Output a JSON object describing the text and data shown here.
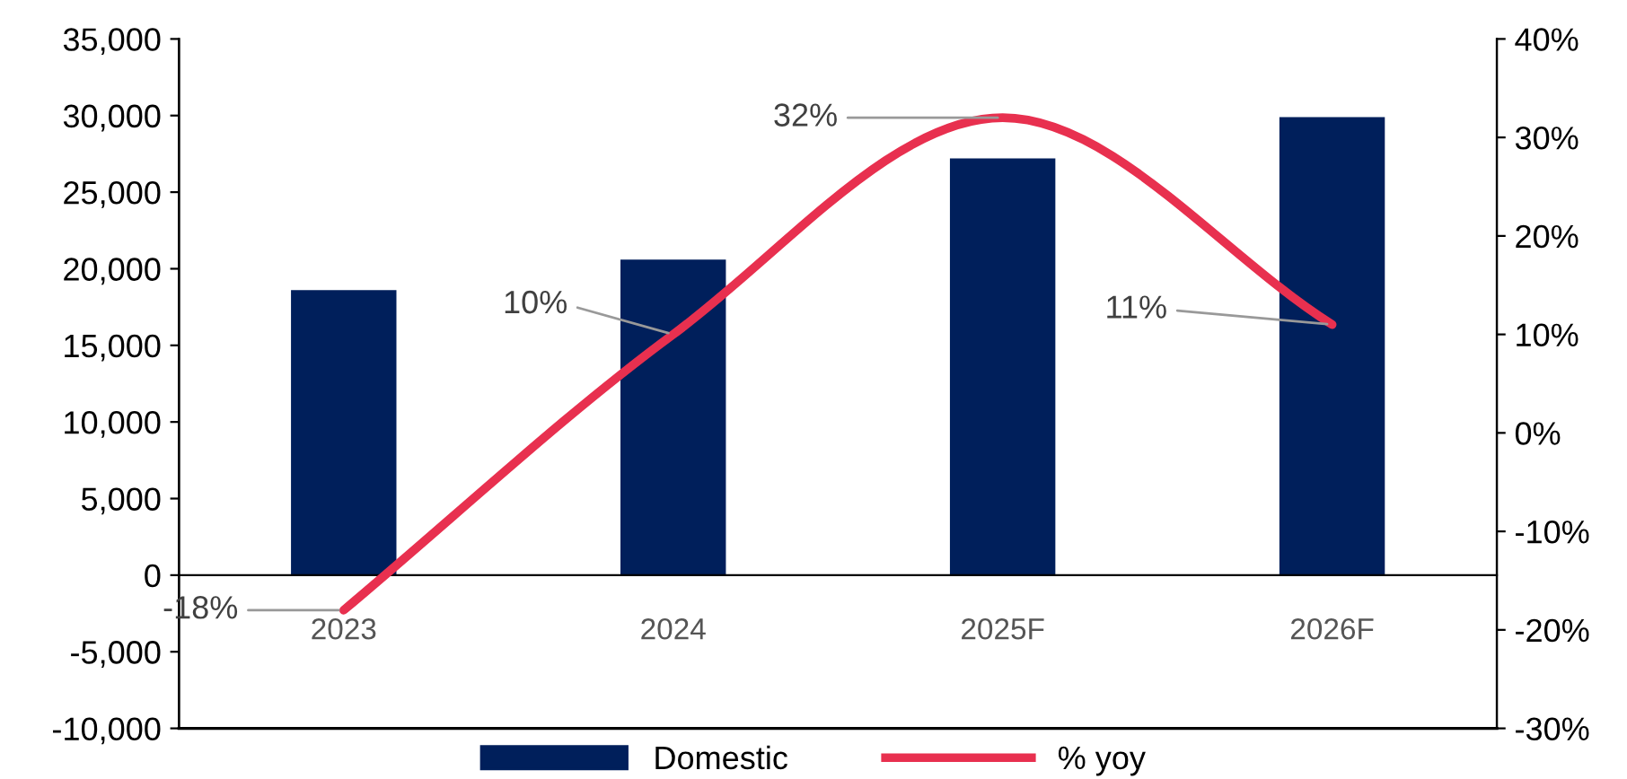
{
  "chart_data": {
    "type": "bar",
    "categories": [
      "2023",
      "2024",
      "2025F",
      "2026F"
    ],
    "series": [
      {
        "name": "Domestic",
        "color": "#001f5b",
        "values": [
          18600,
          20600,
          27200,
          29900
        ]
      },
      {
        "name": "% yoy",
        "type": "line",
        "axis": "y2",
        "color": "#e8304f",
        "values": [
          -18,
          10,
          32,
          11
        ],
        "value_labels": [
          "-18%",
          "10%",
          "32%",
          "11%"
        ]
      }
    ],
    "ylim": [
      -10000,
      35000
    ],
    "yticks": [
      {
        "value": -10000,
        "label": "-10,000"
      },
      {
        "value": -5000,
        "label": "-5,000"
      },
      {
        "value": 0,
        "label": "0"
      },
      {
        "value": 5000,
        "label": "5,000"
      },
      {
        "value": 10000,
        "label": "10,000"
      },
      {
        "value": 15000,
        "label": "15,000"
      },
      {
        "value": 20000,
        "label": "20,000"
      },
      {
        "value": 25000,
        "label": "25,000"
      },
      {
        "value": 30000,
        "label": "30,000"
      },
      {
        "value": 35000,
        "label": "35,000"
      }
    ],
    "y2lim": [
      -30,
      40
    ],
    "y2ticks": [
      {
        "value": -30,
        "label": "-30%"
      },
      {
        "value": -20,
        "label": "-20%"
      },
      {
        "value": -10,
        "label": "-10%"
      },
      {
        "value": 0,
        "label": "0%"
      },
      {
        "value": 10,
        "label": "10%"
      },
      {
        "value": 20,
        "label": "20%"
      },
      {
        "value": 30,
        "label": "30%"
      },
      {
        "value": 40,
        "label": "40%"
      }
    ],
    "grid": false,
    "legend": "bottom",
    "marker": "none",
    "line_style": "solid"
  }
}
